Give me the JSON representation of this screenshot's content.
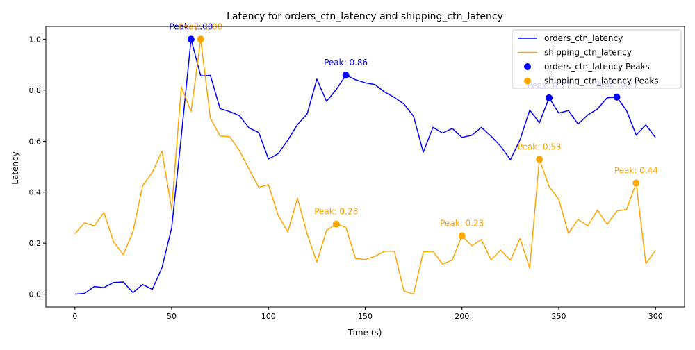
{
  "chart_data": {
    "type": "line",
    "title": "Latency for orders_ctn_latency and shipping_ctn_latency",
    "xlabel": "Time (s)",
    "ylabel": "Latency",
    "xlim": [
      -15,
      315
    ],
    "ylim": [
      -0.05,
      1.05
    ],
    "xticks": [
      0,
      50,
      100,
      150,
      200,
      250,
      300
    ],
    "yticks": [
      0.0,
      0.2,
      0.4,
      0.6,
      0.8,
      1.0
    ],
    "x": [
      0,
      5,
      10,
      15,
      20,
      25,
      30,
      35,
      40,
      45,
      50,
      55,
      60,
      65,
      70,
      75,
      80,
      85,
      90,
      95,
      100,
      105,
      110,
      115,
      120,
      125,
      130,
      135,
      140,
      145,
      150,
      155,
      160,
      165,
      170,
      175,
      180,
      185,
      190,
      195,
      200,
      205,
      210,
      215,
      220,
      225,
      230,
      235,
      240,
      245,
      250,
      255,
      260,
      265,
      270,
      275,
      280,
      285,
      290,
      295,
      300
    ],
    "grid": false,
    "legend_position": "upper-right",
    "series": [
      {
        "name": "orders_ctn_latency",
        "color": "#0000ff",
        "values": [
          0.0,
          0.003,
          0.03,
          0.026,
          0.046,
          0.048,
          0.006,
          0.038,
          0.019,
          0.104,
          0.26,
          0.62,
          1.0,
          0.856,
          0.858,
          0.728,
          0.716,
          0.7,
          0.652,
          0.634,
          0.53,
          0.551,
          0.604,
          0.665,
          0.707,
          0.843,
          0.756,
          0.802,
          0.859,
          0.841,
          0.829,
          0.822,
          0.793,
          0.772,
          0.746,
          0.697,
          0.557,
          0.654,
          0.632,
          0.65,
          0.615,
          0.623,
          0.654,
          0.62,
          0.58,
          0.527,
          0.606,
          0.722,
          0.672,
          0.77,
          0.71,
          0.72,
          0.667,
          0.703,
          0.726,
          0.77,
          0.773,
          0.72,
          0.624,
          0.664,
          0.614
        ]
      },
      {
        "name": "shipping_ctn_latency",
        "color": "#ffa500",
        "values": [
          0.237,
          0.28,
          0.268,
          0.32,
          0.205,
          0.155,
          0.245,
          0.425,
          0.478,
          0.561,
          0.333,
          0.813,
          0.716,
          1.0,
          0.69,
          0.621,
          0.617,
          0.563,
          0.49,
          0.419,
          0.429,
          0.31,
          0.244,
          0.377,
          0.236,
          0.126,
          0.25,
          0.275,
          0.262,
          0.14,
          0.136,
          0.149,
          0.168,
          0.169,
          0.013,
          0.0,
          0.165,
          0.168,
          0.118,
          0.134,
          0.229,
          0.19,
          0.214,
          0.135,
          0.173,
          0.133,
          0.219,
          0.102,
          0.529,
          0.422,
          0.372,
          0.238,
          0.293,
          0.268,
          0.33,
          0.274,
          0.326,
          0.332,
          0.436,
          0.12,
          0.171
        ]
      }
    ],
    "peaks": [
      {
        "series": "orders_ctn_latency Peaks",
        "color": "#0000ff",
        "x": [
          60,
          140,
          245,
          280
        ],
        "y": [
          1.0,
          0.859,
          0.77,
          0.773
        ],
        "labels": [
          "Peak: 1.00",
          "Peak: 0.86",
          "Peak: 0.77",
          "Peak: 0.77"
        ]
      },
      {
        "series": "shipping_ctn_latency Peaks",
        "color": "#ffa500",
        "x": [
          65,
          135,
          200,
          240,
          290
        ],
        "y": [
          1.0,
          0.275,
          0.229,
          0.529,
          0.436
        ],
        "labels": [
          "Peak: 1.00",
          "Peak: 0.28",
          "Peak: 0.23",
          "Peak: 0.53",
          "Peak: 0.44"
        ]
      }
    ],
    "legend": [
      "orders_ctn_latency",
      "shipping_ctn_latency",
      "orders_ctn_latency Peaks",
      "shipping_ctn_latency Peaks"
    ]
  }
}
